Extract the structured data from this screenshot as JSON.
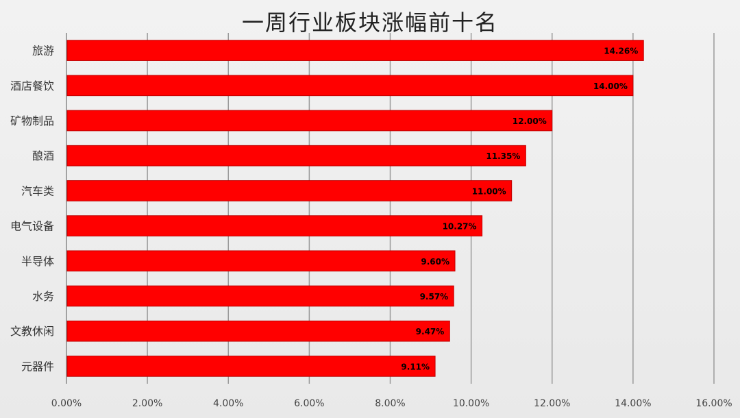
{
  "chart_data": {
    "type": "bar",
    "orientation": "horizontal",
    "title": "一周行业板块涨幅前十名",
    "xlabel": "",
    "ylabel": "",
    "categories": [
      "旅游",
      "酒店餐饮",
      "矿物制品",
      "酿酒",
      "汽车类",
      "电气设备",
      "半导体",
      "水务",
      "文教休闲",
      "元器件"
    ],
    "values": [
      14.26,
      14.0,
      12.0,
      11.35,
      11.0,
      10.27,
      9.6,
      9.57,
      9.47,
      9.11
    ],
    "data_labels": [
      "14.26%",
      "14.00%",
      "12.00%",
      "11.35%",
      "11.00%",
      "10.27%",
      "9.60%",
      "9.57%",
      "9.47%",
      "9.11%"
    ],
    "xlim": [
      0,
      16
    ],
    "xticks": [
      "0.00%",
      "2.00%",
      "4.00%",
      "6.00%",
      "8.00%",
      "10.00%",
      "12.00%",
      "14.00%",
      "16.00%"
    ],
    "grid": "vertical",
    "legend": "none",
    "bar_color": "#ff0000"
  }
}
